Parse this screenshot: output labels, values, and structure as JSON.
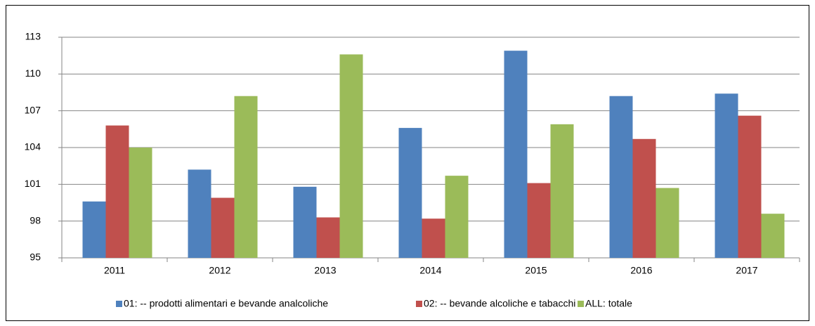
{
  "chart_data": {
    "type": "bar",
    "categories": [
      "2011",
      "2012",
      "2013",
      "2014",
      "2015",
      "2016",
      "2017"
    ],
    "series": [
      {
        "name": "01: -- prodotti alimentari e bevande analcoliche",
        "color": "#4f81bd",
        "values": [
          99.6,
          102.2,
          100.8,
          105.6,
          111.9,
          108.2,
          108.4
        ]
      },
      {
        "name": "02: -- bevande alcoliche e tabacchi",
        "color": "#c0504d",
        "values": [
          105.8,
          99.9,
          98.3,
          98.2,
          101.1,
          104.7,
          106.6
        ]
      },
      {
        "name": "ALL: totale",
        "color": "#9bbb59",
        "values": [
          104.0,
          108.2,
          111.6,
          101.7,
          105.9,
          100.7,
          98.6
        ]
      }
    ],
    "ylim": [
      95,
      113
    ],
    "yticks": [
      95,
      98,
      101,
      104,
      107,
      110,
      113
    ],
    "grid": true,
    "legend": "bottom"
  }
}
